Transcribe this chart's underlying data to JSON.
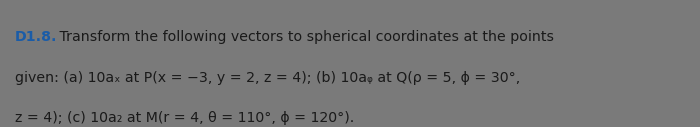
{
  "background_color": "#7a7a7a",
  "box_color": "#dcdcdc",
  "label": "D1.8.",
  "label_color": "#1a5ca8",
  "body_line1": " Transform the following vectors to spherical coordinates at the points",
  "body_line2": "given: (a) 10aₓ at P(x = −3, y = 2, z = 4); (b) 10aᵩ at Q(ρ = 5, ϕ = 30°,",
  "body_line3": "z = 4); (c) 10a₂ at M(r = 4, θ = 110°, ϕ = 120°).",
  "body_color": "#1a1a1a",
  "figsize": [
    7.0,
    1.27
  ],
  "dpi": 100,
  "fontsize": 10.2
}
